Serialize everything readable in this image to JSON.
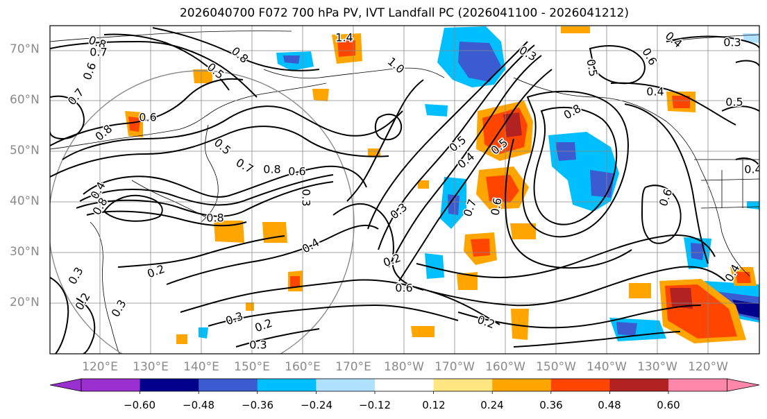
{
  "title": "2026040700 F072 700 hPa PV, IVT Landfall PC (2026041100 - 2026041212)",
  "lat_labels": [
    "70°N",
    "60°N",
    "50°N",
    "40°N",
    "30°N",
    "20°N"
  ],
  "lon_labels": [
    "120°E",
    "130°E",
    "140°E",
    "150°E",
    "160°E",
    "170°E",
    "180°W",
    "170°W",
    "160°W",
    "150°W",
    "140°W",
    "130°W",
    "120°W"
  ],
  "colorbar": {
    "ticks": [
      "−0.60",
      "−0.48",
      "−0.36",
      "−0.24",
      "−0.12",
      "0.12",
      "0.24",
      "0.36",
      "0.48",
      "0.60"
    ],
    "colors": [
      "#9b30d0",
      "#00008b",
      "#3a5cd0",
      "#00bfff",
      "#b0e2ff",
      "#ffffff",
      "#ffe680",
      "#ffa500",
      "#ff4500",
      "#b22222",
      "#ff88aa"
    ]
  },
  "contour_labels": [
    "1.4",
    "0.8",
    "0.7",
    "0.8",
    "0.5",
    "0.6",
    "0.7",
    "0.6",
    "0.8",
    "0.5",
    "0.7",
    "0.8",
    "0.6",
    "0.3",
    "0.4",
    "0.8",
    "0.8",
    "0.3",
    "0.2",
    "0.4",
    "0.2",
    "0.3",
    "0.2",
    "0.3",
    "0.3",
    "0.2",
    "0.6",
    "0.3",
    "0.5",
    "0.4",
    "0.5",
    "0.7",
    "0.6",
    "0.2",
    "0.8",
    "0.3",
    "0.5",
    "0.4",
    "0.4",
    "0.5",
    "0.6",
    "0.6",
    "0.3",
    "0.4",
    "1.0",
    "0.4"
  ]
}
